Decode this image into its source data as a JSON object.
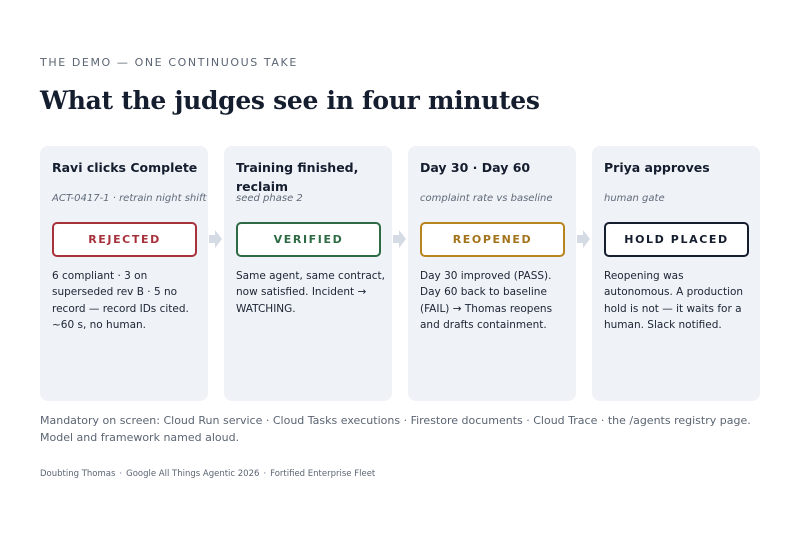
{
  "header": {
    "eyebrow": "THE DEMO — ONE CONTINUOUS TAKE",
    "title": "What the judges see in four minutes"
  },
  "cards": [
    {
      "title": "Ravi clicks Complete",
      "subtitle": "ACT-0417-1 · retrain night shift",
      "badge": "REJECTED",
      "badge_color": "#a8323b",
      "body": "6 compliant · 3 on superseded rev B · 5 no record — record IDs cited. ~60 s, no human."
    },
    {
      "title": "Training finished, reclaim",
      "subtitle": "seed phase 2",
      "badge": "VERIFIED",
      "badge_color": "#2e6b45",
      "body": "Same agent, same contract, now satisfied. Incident → WATCHING."
    },
    {
      "title": "Day 30 · Day 60",
      "subtitle": "complaint rate vs baseline",
      "badge": "REOPENED",
      "badge_color": "#b8841f",
      "body": "Day 30 improved (PASS). Day 60 back to baseline (FAIL) → Thomas reopens and drafts containment."
    },
    {
      "title": "Priya approves",
      "subtitle": "human gate",
      "badge": "HOLD PLACED",
      "badge_color": "#151e2f",
      "body": "Reopening was autonomous. A production hold is not — it waits for a human. Slack notified."
    }
  ],
  "connector_icon": "arrow-right-icon",
  "note": "Mandatory on screen: Cloud Run service · Cloud Tasks executions · Firestore documents · Cloud Trace · the /agents registry page. Model and framework named aloud.",
  "footer": {
    "items": [
      "Doubting Thomas",
      "Google All Things Agentic 2026",
      "Fortified Enterprise Fleet"
    ],
    "separator": "·"
  }
}
